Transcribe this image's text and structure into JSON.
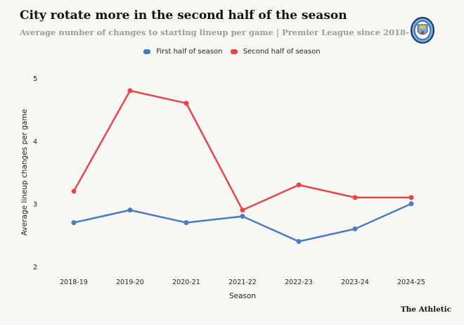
{
  "title": "City rotate more in the second half of the season",
  "subtitle": "Average number of changes to starting lineup per game | Premier League since 2018-19",
  "brand": "The Athletic",
  "logo": {
    "name": "manchester-city-crest",
    "text": "MANCHESTER CITY"
  },
  "chart_data": {
    "type": "line",
    "xlabel": "Season",
    "ylabel": "Average lineup changes per game",
    "categories": [
      "2018-19",
      "2019-20",
      "2020-21",
      "2021-22",
      "2022-23",
      "2023-24",
      "2024-25"
    ],
    "ylim": [
      2,
      5
    ],
    "yticks": [
      "2",
      "3",
      "4",
      "5"
    ],
    "grid": false,
    "legend_position": "top",
    "series": [
      {
        "name": "First half of season",
        "color": "#4a7bbd",
        "values": [
          2.7,
          2.9,
          2.7,
          2.8,
          2.4,
          2.6,
          3.0
        ]
      },
      {
        "name": "Second half of season",
        "color": "#e5454b",
        "values": [
          3.2,
          4.8,
          4.6,
          2.9,
          3.3,
          3.1,
          3.1
        ]
      }
    ]
  }
}
